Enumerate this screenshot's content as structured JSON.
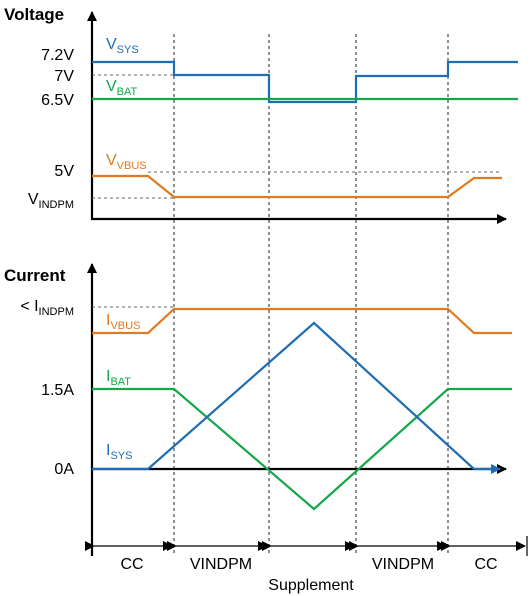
{
  "colors": {
    "sys": "#1f6db5",
    "bat": "#14a84a",
    "vbus": "#e07a1f",
    "axis": "#000000"
  },
  "voltage": {
    "title": "Voltage",
    "ticks": {
      "v72": "7.2V",
      "v7": "7V",
      "v65": "6.5V",
      "v5": "5V",
      "vindpm_main": "V",
      "vindpm_sub": "INDPM"
    },
    "traces": {
      "sys": {
        "main": "V",
        "sub": "SYS"
      },
      "bat": {
        "main": "V",
        "sub": "BAT"
      },
      "vbus": {
        "main": "V",
        "sub": "VBUS"
      }
    }
  },
  "current": {
    "title": "Current",
    "ticks": {
      "indpm_prefix": "< I",
      "indpm_sub": "INDPM",
      "a15": "1.5A",
      "a0": "0A"
    },
    "traces": {
      "vbus": {
        "main": "I",
        "sub": "VBUS"
      },
      "bat": {
        "main": "I",
        "sub": "BAT"
      },
      "sys": {
        "main": "I",
        "sub": "SYS"
      }
    }
  },
  "phases": {
    "p1": "CC",
    "p2": "VINDPM",
    "p3": "Supplement",
    "p4": "VINDPM",
    "p5": "CC"
  }
}
